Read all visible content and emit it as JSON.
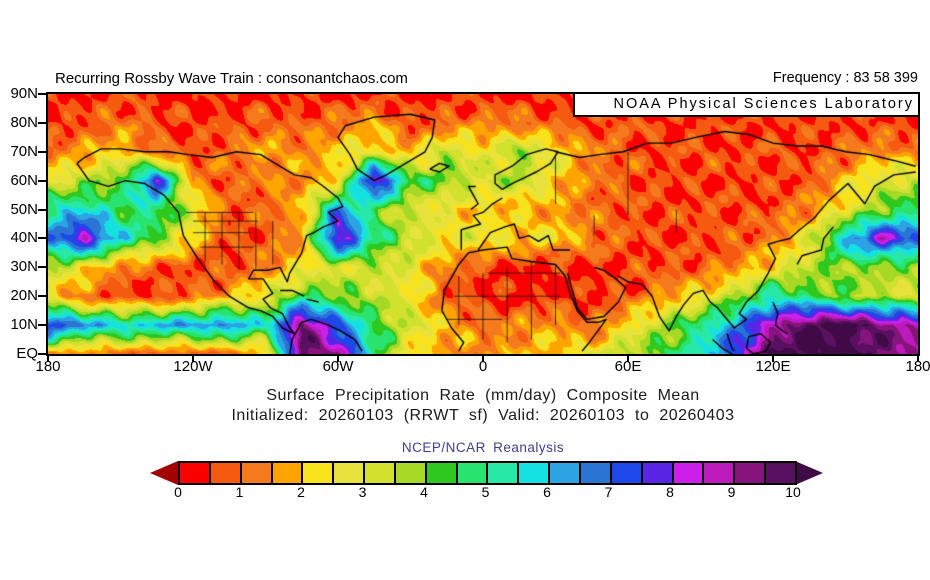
{
  "header": {
    "attribution": "Recurring Rossby Wave Train : consonantchaos.com",
    "frequency_label": "Frequency : 83 58 399",
    "agency_box": "NOAA Physical Sciences Laboratory"
  },
  "titles": {
    "line1": "Surface Precipitation Rate (mm/day) Composite Mean",
    "line2": "Initialized: 20260103 (RRWT sf) Valid: 20260103 to 20260403",
    "source": "NCEP/NCAR Reanalysis"
  },
  "axes": {
    "lat_tick_labels": [
      "90N",
      "80N",
      "70N",
      "60N",
      "50N",
      "40N",
      "30N",
      "20N",
      "10N",
      "EQ"
    ],
    "lon_tick_labels": [
      "180",
      "120W",
      "60W",
      "0",
      "60E",
      "120E",
      "180"
    ]
  },
  "colorbar": {
    "tick_labels": [
      "0",
      "1",
      "2",
      "3",
      "4",
      "5",
      "6",
      "7",
      "8",
      "9",
      "10"
    ],
    "under_color": "#a30000",
    "over_color": "#3f0a46"
  },
  "chart_data": {
    "type": "heatmap",
    "title": "Surface Precipitation Rate (mm/day) Composite Mean",
    "subtitle": "Initialized: 20260103 (RRWT sf) Valid: 20260103 to 20260403",
    "source": "NCEP/NCAR Reanalysis",
    "units": "mm/day",
    "lat_range": [
      0,
      90
    ],
    "lon_range": [
      -180,
      180
    ],
    "levels_min": 0,
    "levels_max": 10,
    "level_step": 0.5,
    "palette": [
      "#fb0000",
      "#f55a10",
      "#f57a1e",
      "#ffa400",
      "#f8e21b",
      "#e8e23c",
      "#d2e02e",
      "#a6d826",
      "#2fc81e",
      "#28e46e",
      "#28e8a8",
      "#14e2e2",
      "#2ca4e4",
      "#2a74d4",
      "#1e48ea",
      "#5a26e6",
      "#cc20ea",
      "#bc1abc",
      "#86147c",
      "#5a1060"
    ],
    "under_color": "#a30000",
    "over_color": "#3f0a46",
    "lon_grid": [
      -180,
      -165,
      -150,
      -135,
      -120,
      -105,
      -90,
      -75,
      -60,
      -45,
      -30,
      -15,
      0,
      15,
      30,
      45,
      60,
      75,
      90,
      105,
      120,
      135,
      150,
      165,
      180
    ],
    "lat_grid": [
      90,
      80,
      70,
      60,
      50,
      40,
      30,
      20,
      10,
      0
    ],
    "values": [
      [
        0.3,
        0.4,
        0.6,
        0.4,
        0.3,
        0.3,
        0.4,
        0.3,
        0.3,
        0.3,
        0.3,
        0.4,
        0.3,
        0.3,
        0.4,
        0.3,
        0.3,
        0.4,
        0.3,
        0.3,
        0.4,
        0.3,
        0.3,
        0.4,
        0.3
      ],
      [
        0.4,
        0.7,
        1.2,
        0.8,
        0.5,
        0.6,
        1.0,
        0.8,
        1.2,
        1.8,
        0.6,
        1.0,
        1.4,
        1.2,
        0.8,
        0.6,
        0.8,
        0.5,
        0.6,
        0.5,
        0.6,
        0.5,
        0.6,
        0.5,
        0.4
      ],
      [
        1.0,
        1.6,
        2.2,
        1.0,
        0.6,
        1.2,
        1.8,
        1.4,
        2.2,
        2.6,
        1.8,
        3.5,
        2.4,
        3.8,
        2.6,
        1.4,
        0.8,
        0.6,
        0.8,
        0.6,
        0.8,
        0.6,
        1.0,
        1.6,
        1.2
      ],
      [
        2.8,
        3.4,
        4.2,
        7.8,
        1.4,
        0.8,
        1.2,
        1.6,
        2.0,
        8.8,
        4.5,
        4.0,
        3.2,
        3.6,
        2.2,
        1.2,
        0.8,
        0.6,
        0.5,
        0.6,
        0.5,
        0.8,
        2.0,
        3.0,
        3.4
      ],
      [
        5.2,
        5.8,
        4.6,
        5.0,
        3.0,
        0.8,
        1.0,
        1.8,
        6.8,
        4.2,
        3.0,
        2.4,
        2.0,
        1.8,
        1.6,
        1.0,
        0.8,
        0.6,
        0.8,
        0.6,
        0.8,
        1.4,
        2.6,
        4.0,
        4.8
      ],
      [
        6.4,
        8.6,
        5.6,
        4.2,
        2.2,
        0.6,
        0.8,
        1.6,
        8.8,
        5.0,
        3.4,
        2.6,
        2.8,
        2.2,
        2.4,
        1.4,
        0.8,
        0.5,
        0.6,
        0.8,
        1.2,
        2.8,
        6.0,
        8.4,
        7.0
      ],
      [
        3.6,
        2.6,
        1.2,
        0.8,
        0.6,
        0.6,
        1.4,
        2.2,
        3.0,
        3.2,
        2.8,
        1.2,
        0.6,
        0.3,
        0.3,
        0.4,
        0.5,
        0.8,
        0.8,
        1.4,
        2.4,
        3.4,
        4.0,
        3.6,
        3.8
      ],
      [
        2.2,
        1.0,
        0.5,
        0.4,
        1.0,
        1.8,
        2.6,
        4.6,
        4.0,
        3.4,
        2.6,
        0.8,
        0.4,
        0.3,
        0.3,
        0.5,
        0.8,
        1.6,
        2.4,
        3.6,
        5.4,
        4.4,
        3.8,
        3.4,
        3.0
      ],
      [
        8.0,
        6.4,
        6.0,
        6.2,
        6.4,
        6.8,
        5.2,
        9.6,
        7.0,
        4.6,
        3.2,
        2.0,
        1.2,
        1.4,
        1.8,
        0.8,
        2.4,
        3.6,
        5.0,
        6.6,
        8.6,
        10.3,
        10.3,
        9.4,
        8.8
      ],
      [
        1.6,
        1.2,
        1.0,
        0.8,
        0.8,
        1.0,
        1.8,
        9.8,
        9.0,
        5.0,
        2.2,
        1.6,
        1.4,
        1.8,
        2.0,
        2.8,
        3.6,
        4.4,
        5.4,
        7.5,
        10.2,
        10.4,
        10.2,
        9.6,
        9.0
      ]
    ],
    "coastlines": [
      [
        [
          -168,
          66
        ],
        [
          -163,
          60
        ],
        [
          -155,
          58
        ],
        [
          -148,
          60
        ],
        [
          -140,
          59
        ],
        [
          -132,
          55
        ],
        [
          -126,
          49
        ],
        [
          -124,
          41
        ],
        [
          -118,
          33
        ],
        [
          -111,
          25
        ],
        [
          -105,
          20
        ],
        [
          -97,
          16
        ],
        [
          -92,
          15
        ],
        [
          -87,
          13
        ],
        [
          -83,
          9
        ],
        [
          -78,
          7
        ],
        [
          -80,
          9
        ],
        [
          -83,
          14
        ],
        [
          -88,
          16
        ],
        [
          -91,
          19
        ],
        [
          -87,
          21
        ],
        [
          -91,
          26
        ],
        [
          -97,
          26
        ],
        [
          -95,
          29
        ],
        [
          -89,
          29
        ],
        [
          -84,
          30
        ],
        [
          -81,
          25
        ],
        [
          -80,
          28
        ],
        [
          -75,
          35
        ],
        [
          -73,
          41
        ],
        [
          -70,
          42
        ],
        [
          -66,
          44
        ],
        [
          -60,
          46
        ],
        [
          -64,
          49
        ],
        [
          -58,
          51
        ],
        [
          -60,
          54
        ],
        [
          -66,
          58
        ],
        [
          -71,
          61
        ],
        [
          -78,
          62
        ],
        [
          -86,
          66
        ],
        [
          -92,
          69
        ],
        [
          -102,
          70
        ],
        [
          -112,
          68
        ],
        [
          -122,
          69
        ],
        [
          -130,
          70
        ],
        [
          -140,
          70
        ],
        [
          -150,
          71
        ],
        [
          -158,
          71
        ],
        [
          -165,
          68
        ],
        [
          -168,
          66
        ]
      ],
      [
        [
          -45,
          60
        ],
        [
          -52,
          64
        ],
        [
          -55,
          69
        ],
        [
          -60,
          75
        ],
        [
          -57,
          79
        ],
        [
          -45,
          82
        ],
        [
          -30,
          83
        ],
        [
          -20,
          81
        ],
        [
          -21,
          75
        ],
        [
          -24,
          70
        ],
        [
          -32,
          66
        ],
        [
          -40,
          62
        ],
        [
          -45,
          60
        ]
      ],
      [
        [
          -80,
          0
        ],
        [
          -79,
          5
        ],
        [
          -77,
          8
        ],
        [
          -75,
          11
        ],
        [
          -71,
          12
        ],
        [
          -64,
          10
        ],
        [
          -59,
          8
        ],
        [
          -53,
          5
        ],
        [
          -50,
          1
        ]
      ],
      [
        [
          -10,
          1
        ],
        [
          -8,
          4
        ],
        [
          -13,
          9
        ],
        [
          -17,
          15
        ],
        [
          -16,
          22
        ],
        [
          -10,
          31
        ],
        [
          -6,
          35
        ],
        [
          0,
          36
        ],
        [
          10,
          37
        ],
        [
          12,
          33
        ],
        [
          20,
          32
        ],
        [
          30,
          31
        ],
        [
          32,
          29
        ],
        [
          34,
          27
        ],
        [
          36,
          21
        ],
        [
          39,
          15
        ],
        [
          43,
          11
        ],
        [
          48,
          11
        ],
        [
          51,
          12
        ],
        [
          44,
          4
        ],
        [
          41,
          1
        ]
      ],
      [
        [
          -9,
          36
        ],
        [
          -9,
          43
        ],
        [
          -1,
          45
        ],
        [
          -4,
          48
        ],
        [
          0,
          49
        ],
        [
          4,
          52
        ],
        [
          8,
          54
        ]
      ],
      [
        [
          8,
          57
        ],
        [
          5,
          59
        ],
        [
          5,
          62
        ],
        [
          12,
          65
        ],
        [
          18,
          69
        ],
        [
          26,
          71
        ],
        [
          31,
          70
        ],
        [
          28,
          66
        ],
        [
          22,
          63
        ],
        [
          17,
          61
        ],
        [
          12,
          59
        ],
        [
          8,
          57
        ]
      ],
      [
        [
          -2,
          36
        ],
        [
          3,
          42
        ],
        [
          9,
          44
        ],
        [
          13,
          45
        ],
        [
          15,
          40
        ],
        [
          19,
          41
        ],
        [
          23,
          39
        ],
        [
          27,
          41
        ],
        [
          29,
          36
        ],
        [
          33,
          36
        ],
        [
          36,
          36
        ]
      ],
      [
        [
          -5,
          50
        ],
        [
          -2,
          52
        ],
        [
          -4,
          55
        ],
        [
          -6,
          58
        ],
        [
          -3,
          58
        ]
      ],
      [
        [
          -22,
          64
        ],
        [
          -18,
          66
        ],
        [
          -14,
          65
        ],
        [
          -18,
          63
        ],
        [
          -22,
          64
        ]
      ],
      [
        [
          30,
          70
        ],
        [
          40,
          68
        ],
        [
          48,
          69
        ],
        [
          58,
          70
        ],
        [
          68,
          73
        ],
        [
          78,
          73
        ],
        [
          88,
          75
        ],
        [
          100,
          77
        ],
        [
          110,
          76
        ],
        [
          120,
          73
        ],
        [
          130,
          72
        ],
        [
          140,
          72
        ],
        [
          150,
          70
        ],
        [
          160,
          69
        ],
        [
          170,
          67
        ],
        [
          179,
          65
        ]
      ],
      [
        [
          179,
          63
        ],
        [
          170,
          62
        ],
        [
          162,
          58
        ],
        [
          158,
          52
        ],
        [
          151,
          59
        ],
        [
          143,
          53
        ],
        [
          137,
          47
        ],
        [
          131,
          43
        ],
        [
          127,
          40
        ],
        [
          122,
          39
        ],
        [
          118,
          38
        ],
        [
          121,
          33
        ],
        [
          118,
          28
        ],
        [
          114,
          22
        ],
        [
          109,
          18
        ],
        [
          106,
          14
        ],
        [
          109,
          12
        ],
        [
          104,
          9
        ],
        [
          100,
          13
        ],
        [
          97,
          16
        ],
        [
          94,
          18
        ],
        [
          91,
          22
        ],
        [
          87,
          21
        ],
        [
          83,
          17
        ],
        [
          80,
          13
        ],
        [
          77,
          8
        ],
        [
          73,
          13
        ],
        [
          70,
          20
        ],
        [
          66,
          24
        ],
        [
          60,
          25
        ],
        [
          56,
          27
        ]
      ],
      [
        [
          35,
          28
        ],
        [
          39,
          16
        ],
        [
          43,
          12
        ],
        [
          50,
          13
        ],
        [
          56,
          18
        ],
        [
          59,
          23
        ],
        [
          55,
          26
        ],
        [
          50,
          29
        ],
        [
          46,
          30
        ]
      ],
      [
        [
          101,
          7
        ],
        [
          103,
          2
        ],
        [
          104,
          1
        ]
      ],
      [
        [
          95,
          5
        ],
        [
          99,
          2
        ],
        [
          103,
          0
        ]
      ],
      [
        [
          109,
          2
        ],
        [
          110,
          6
        ],
        [
          115,
          7
        ],
        [
          119,
          4
        ],
        [
          117,
          1
        ],
        [
          112,
          0
        ],
        [
          109,
          2
        ]
      ],
      [
        [
          120,
          18
        ],
        [
          122,
          14
        ],
        [
          121,
          10
        ],
        [
          124,
          8
        ],
        [
          126,
          7
        ]
      ],
      [
        [
          130,
          31
        ],
        [
          132,
          34
        ],
        [
          136,
          35
        ],
        [
          140,
          36
        ],
        [
          141,
          40
        ],
        [
          143,
          42
        ],
        [
          145,
          44
        ]
      ],
      [
        [
          -84,
          22
        ],
        [
          -79,
          22
        ],
        [
          -74,
          20
        ]
      ],
      [
        [
          -73,
          19
        ],
        [
          -68,
          18
        ]
      ]
    ],
    "borders": [
      [
        [
          -115,
          32
        ],
        [
          -115,
          49
        ]
      ],
      [
        [
          -108,
          31
        ],
        [
          -108,
          49
        ]
      ],
      [
        [
          -101,
          29
        ],
        [
          -101,
          49
        ]
      ],
      [
        [
          -94,
          29
        ],
        [
          -94,
          49
        ]
      ],
      [
        [
          -87,
          31
        ],
        [
          -87,
          46
        ]
      ],
      [
        [
          -123,
          49
        ],
        [
          -95,
          49
        ]
      ],
      [
        [
          -120,
          42
        ],
        [
          -96,
          42
        ]
      ],
      [
        [
          -117,
          37
        ],
        [
          -95,
          37
        ]
      ],
      [
        [
          -120,
          46
        ],
        [
          -93,
          46
        ]
      ],
      [
        [
          0,
          5
        ],
        [
          0,
          28
        ]
      ],
      [
        [
          10,
          4
        ],
        [
          10,
          30
        ]
      ],
      [
        [
          20,
          5
        ],
        [
          20,
          32
        ]
      ],
      [
        [
          30,
          10
        ],
        [
          30,
          31
        ]
      ],
      [
        [
          -10,
          10
        ],
        [
          -10,
          27
        ]
      ],
      [
        [
          -15,
          12
        ],
        [
          8,
          12
        ]
      ],
      [
        [
          -12,
          20
        ],
        [
          32,
          20
        ]
      ],
      [
        [
          2,
          28
        ],
        [
          32,
          28
        ]
      ],
      [
        [
          30,
          52
        ],
        [
          30,
          69
        ]
      ],
      [
        [
          60,
          48
        ],
        [
          60,
          70
        ]
      ],
      [
        [
          80,
          42
        ],
        [
          80,
          50
        ]
      ],
      [
        [
          46,
          41
        ],
        [
          46,
          48
        ]
      ]
    ]
  }
}
